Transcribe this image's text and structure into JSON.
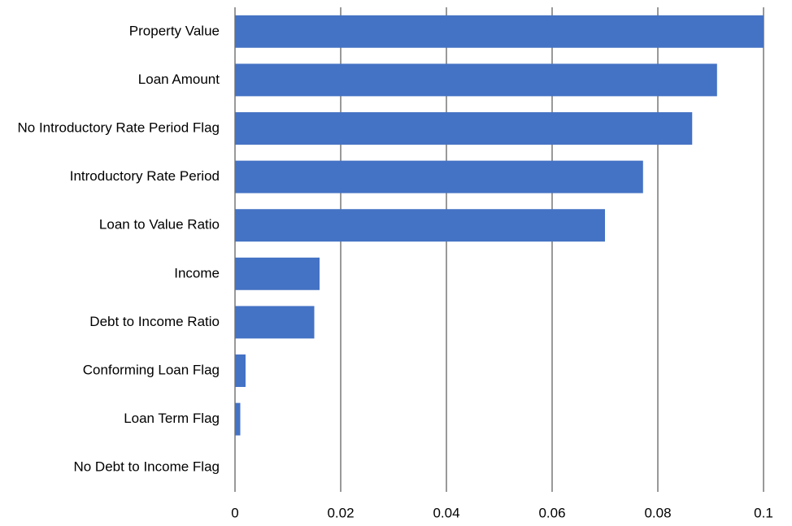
{
  "chart_data": {
    "type": "barh",
    "categories": [
      "Property Value",
      "Loan Amount",
      "No Introductory Rate Period Flag",
      "Introductory Rate Period",
      "Loan to Value Ratio",
      "Income",
      "Debt to Income Ratio",
      "Conforming Loan Flag",
      "Loan Term Flag",
      "No Debt to Income Flag"
    ],
    "values": [
      0.1,
      0.0912,
      0.0865,
      0.0772,
      0.07,
      0.016,
      0.015,
      0.002,
      0.001,
      0
    ],
    "color": "#4472c4",
    "xlim": [
      0,
      0.1
    ],
    "xticks": [
      0,
      0.02,
      0.04,
      0.06,
      0.08,
      0.1
    ],
    "grid": true
  }
}
